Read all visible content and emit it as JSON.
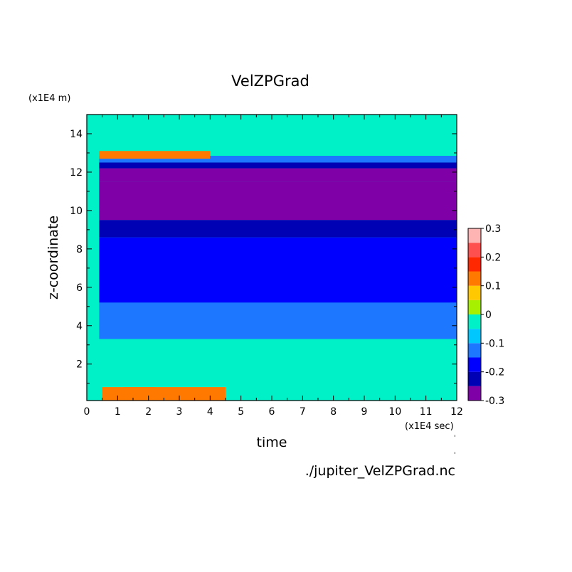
{
  "chart_data": {
    "type": "heatmap",
    "title": "VelZPGrad",
    "xlabel": "time",
    "ylabel": "z-coordinate",
    "x_unit": "(x1E4 sec)",
    "y_unit": "(x1E4 m)",
    "xlim": [
      0,
      12
    ],
    "ylim": [
      0.1,
      15
    ],
    "x_ticks": [
      "0",
      "1",
      "2",
      "3",
      "4",
      "5",
      "6",
      "7",
      "8",
      "9",
      "10",
      "11",
      "12"
    ],
    "y_ticks": [
      "2",
      "4",
      "6",
      "8",
      "10",
      "12",
      "14"
    ],
    "colorbar": {
      "levels": [
        "0.3",
        "0.2",
        "0.1",
        "0",
        "-0.1",
        "-0.2",
        "-0.3"
      ],
      "colors": [
        "#7f00a6",
        "#0000b4",
        "#0000ff",
        "#1e78ff",
        "#00c8ff",
        "#00f0c8",
        "#a6f000",
        "#ffc800",
        "#ff7800",
        "#ff2800",
        "#ff5050",
        "#ffb4b4"
      ]
    },
    "value_bands": [
      {
        "z_top": 15.0,
        "z_bottom": 13.25,
        "value": 0.0
      },
      {
        "z_top": 13.25,
        "z_bottom": 12.85,
        "value": -0.05
      },
      {
        "z_top": 12.85,
        "z_bottom": 12.5,
        "value": -0.1
      },
      {
        "z_top": 12.5,
        "z_bottom": 12.2,
        "value": -0.2
      },
      {
        "z_top": 12.2,
        "z_bottom": 11.5,
        "value": -0.3
      },
      {
        "z_top": 11.5,
        "z_bottom": 9.5,
        "value": -0.25
      },
      {
        "z_top": 9.5,
        "z_bottom": 8.6,
        "value": -0.2
      },
      {
        "z_top": 8.6,
        "z_bottom": 5.2,
        "value": -0.15
      },
      {
        "z_top": 5.2,
        "z_bottom": 3.3,
        "value": -0.1
      },
      {
        "z_top": 3.3,
        "z_bottom": 1.3,
        "value": -0.05
      },
      {
        "z_top": 1.3,
        "z_bottom": 0.1,
        "value": 0.0
      }
    ],
    "features": [
      {
        "t_start": 0.4,
        "t_end": 4.0,
        "z_bottom": 12.7,
        "z_top": 13.1,
        "value": 0.1
      },
      {
        "t_start": 0.5,
        "t_end": 4.5,
        "z_bottom": 0.1,
        "z_top": 0.8,
        "value": 0.1
      },
      {
        "t_start": 1.2,
        "t_end": 2.2,
        "z_bottom": 0.1,
        "z_top": 0.8,
        "value": 0.15
      }
    ],
    "source_file": "./jupiter_VelZPGrad.nc"
  }
}
